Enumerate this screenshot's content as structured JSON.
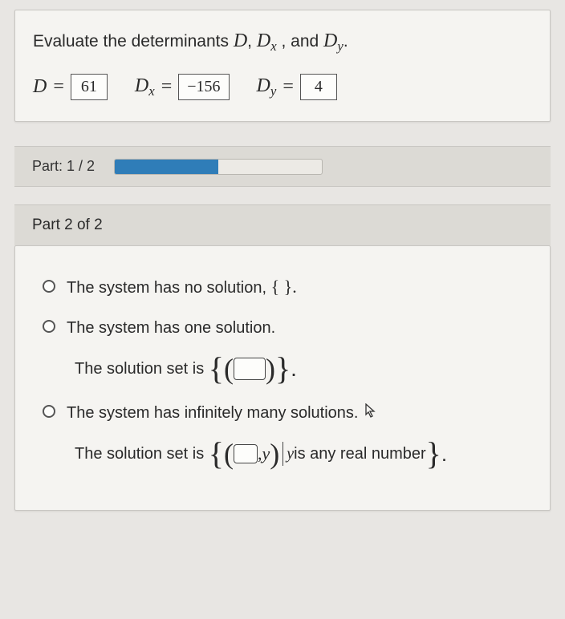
{
  "part1": {
    "prompt_prefix": "Evaluate the determinants ",
    "var_D": "D",
    "comma1": ", ",
    "var_Dx": "D",
    "sub_x": "x",
    "comma2": ", and ",
    "var_Dy": "D",
    "sub_y": "y",
    "period": ".",
    "D_label": "D",
    "D_value": "61",
    "Dx_label": "D",
    "Dx_sub": "x",
    "Dx_value": "−156",
    "Dy_label": "D",
    "Dy_sub": "y",
    "Dy_value": "4",
    "equals": "="
  },
  "progress": {
    "label": "Part: 1 / 2",
    "percent": 50,
    "bar_color": "#2f7db8",
    "track_color": "#eceae5"
  },
  "part2": {
    "header": "Part 2 of 2",
    "opt1_text": "The system has no solution, ",
    "opt1_set": "{ }.",
    "opt2_text": "The system has one solution.",
    "opt2_sol_prefix": "The solution set is ",
    "opt3_text": "The system has infinitely many solutions.",
    "opt3_sol_prefix": "The solution set is ",
    "y_var": "y",
    "y_text": " is any real number",
    "comma": ","
  },
  "colors": {
    "panel_bg": "#f5f4f1",
    "strip_bg": "#dcdad5",
    "page_bg": "#e8e6e3",
    "border": "#c8c6c2",
    "text": "#2a2a2a"
  }
}
